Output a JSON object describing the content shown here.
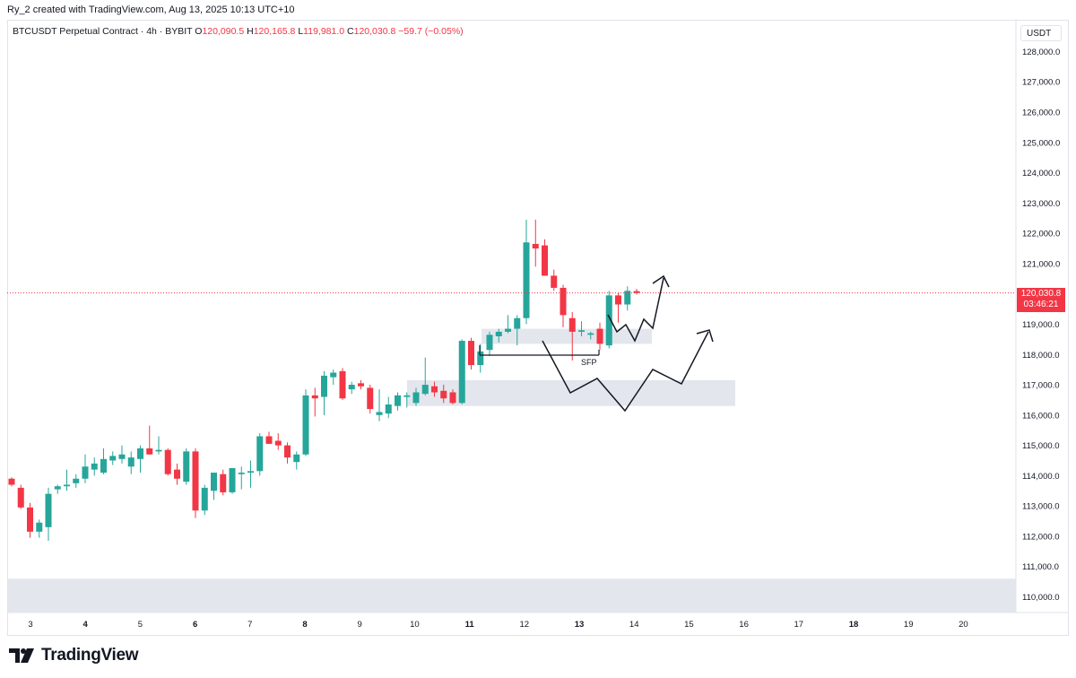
{
  "credit": "Ry_2 created with TradingView.com, Aug 13, 2025 10:13 UTC+10",
  "legend": {
    "symbol": "BTCUSDT Perpetual Contract · 4h · BYBIT",
    "open_label": "O",
    "open": "120,090.5",
    "high_label": "H",
    "high": "120,165.8",
    "low_label": "L",
    "low": "119,981.0",
    "close_label": "C",
    "close": "120,030.8",
    "change": "−59.7 (−0.05%)"
  },
  "currency": "USDT",
  "price_tag": {
    "price": "120,030.8",
    "countdown": "03:46:21"
  },
  "annotation_label": "SFP",
  "brand": "TradingView",
  "colors": {
    "up": "#26a69a",
    "down": "#f23645",
    "zone": "#e0e3eb",
    "grid_text": "#131722"
  },
  "chart_data": {
    "type": "candlestick",
    "timeframe": "4h",
    "ylim": [
      109500,
      128800
    ],
    "y_ticks": [
      110000,
      111000,
      112000,
      113000,
      114000,
      115000,
      116000,
      117000,
      118000,
      119000,
      120000,
      121000,
      122000,
      123000,
      124000,
      125000,
      126000,
      127000,
      128000
    ],
    "y_tick_labels": [
      "110,000.0",
      "111,000.0",
      "112,000.0",
      "113,000.0",
      "114,000.0",
      "115,000.0",
      "116,000.0",
      "117,000.0",
      "118,000.0",
      "119,000.0",
      "120,000.0",
      "121,000.0",
      "122,000.0",
      "123,000.0",
      "124,000.0",
      "125,000.0",
      "126,000.0",
      "127,000.0",
      "128,000.0"
    ],
    "x_ticks": [
      3,
      4,
      5,
      6,
      7,
      8,
      9,
      10,
      11,
      12,
      13,
      14,
      15,
      16,
      17,
      18,
      19,
      20
    ],
    "x_tick_labels": [
      "3",
      "4",
      "5",
      "6",
      "7",
      "8",
      "9",
      "10",
      "11",
      "12",
      "13",
      "14",
      "15",
      "16",
      "17",
      "18",
      "19",
      "20"
    ],
    "x_tick_bold": [
      4,
      6,
      8,
      11,
      13,
      18
    ],
    "last_price": 120030.8,
    "candles": [
      {
        "o": 113900,
        "h": 113950,
        "l": 113650,
        "c": 113700
      },
      {
        "o": 113600,
        "h": 113700,
        "l": 112900,
        "c": 112950
      },
      {
        "o": 112950,
        "h": 113100,
        "l": 111950,
        "c": 112150
      },
      {
        "o": 112150,
        "h": 112550,
        "l": 111950,
        "c": 112450
      },
      {
        "o": 112300,
        "h": 113600,
        "l": 111850,
        "c": 113400
      },
      {
        "o": 113550,
        "h": 113700,
        "l": 113400,
        "c": 113650
      },
      {
        "o": 113650,
        "h": 114200,
        "l": 113500,
        "c": 113700
      },
      {
        "o": 113750,
        "h": 114050,
        "l": 113600,
        "c": 113900
      },
      {
        "o": 113900,
        "h": 114700,
        "l": 113750,
        "c": 114300
      },
      {
        "o": 114200,
        "h": 114600,
        "l": 114000,
        "c": 114400
      },
      {
        "o": 114100,
        "h": 114900,
        "l": 114050,
        "c": 114550
      },
      {
        "o": 114500,
        "h": 114800,
        "l": 114350,
        "c": 114650
      },
      {
        "o": 114550,
        "h": 115000,
        "l": 114400,
        "c": 114700
      },
      {
        "o": 114300,
        "h": 114800,
        "l": 114050,
        "c": 114600
      },
      {
        "o": 114550,
        "h": 115000,
        "l": 114100,
        "c": 114900
      },
      {
        "o": 114900,
        "h": 115650,
        "l": 114700,
        "c": 114700
      },
      {
        "o": 114800,
        "h": 115300,
        "l": 114700,
        "c": 114850
      },
      {
        "o": 114850,
        "h": 114900,
        "l": 114000,
        "c": 114050
      },
      {
        "o": 114200,
        "h": 114400,
        "l": 113700,
        "c": 113900
      },
      {
        "o": 113800,
        "h": 114900,
        "l": 113700,
        "c": 114800
      },
      {
        "o": 114800,
        "h": 114900,
        "l": 112600,
        "c": 112850
      },
      {
        "o": 112850,
        "h": 113700,
        "l": 112700,
        "c": 113600
      },
      {
        "o": 113500,
        "h": 114100,
        "l": 113200,
        "c": 114100
      },
      {
        "o": 114050,
        "h": 114200,
        "l": 113350,
        "c": 113450
      },
      {
        "o": 113450,
        "h": 114250,
        "l": 113400,
        "c": 114250
      },
      {
        "o": 114050,
        "h": 114300,
        "l": 113550,
        "c": 114100
      },
      {
        "o": 114100,
        "h": 114500,
        "l": 113600,
        "c": 114150
      },
      {
        "o": 114150,
        "h": 115400,
        "l": 114000,
        "c": 115300
      },
      {
        "o": 115300,
        "h": 115450,
        "l": 115050,
        "c": 115050
      },
      {
        "o": 115150,
        "h": 115400,
        "l": 114850,
        "c": 115000
      },
      {
        "o": 115000,
        "h": 115100,
        "l": 114400,
        "c": 114600
      },
      {
        "o": 114450,
        "h": 114800,
        "l": 114200,
        "c": 114700
      },
      {
        "o": 114700,
        "h": 116850,
        "l": 114650,
        "c": 116650
      },
      {
        "o": 116650,
        "h": 116900,
        "l": 115950,
        "c": 116550
      },
      {
        "o": 116600,
        "h": 117450,
        "l": 116000,
        "c": 117300
      },
      {
        "o": 117250,
        "h": 117500,
        "l": 117000,
        "c": 117400
      },
      {
        "o": 117450,
        "h": 117550,
        "l": 116500,
        "c": 116550
      },
      {
        "o": 116850,
        "h": 117100,
        "l": 116700,
        "c": 117000
      },
      {
        "o": 117050,
        "h": 117150,
        "l": 116850,
        "c": 116950
      },
      {
        "o": 116900,
        "h": 117000,
        "l": 116050,
        "c": 116200
      },
      {
        "o": 116000,
        "h": 116850,
        "l": 115800,
        "c": 116100
      },
      {
        "o": 116050,
        "h": 116600,
        "l": 115900,
        "c": 116350
      },
      {
        "o": 116300,
        "h": 116750,
        "l": 116150,
        "c": 116650
      },
      {
        "o": 116600,
        "h": 116750,
        "l": 116250,
        "c": 116650
      },
      {
        "o": 116400,
        "h": 116900,
        "l": 116300,
        "c": 116750
      },
      {
        "o": 116700,
        "h": 117900,
        "l": 116650,
        "c": 117000
      },
      {
        "o": 116950,
        "h": 117100,
        "l": 116600,
        "c": 116750
      },
      {
        "o": 116800,
        "h": 117000,
        "l": 116400,
        "c": 116550
      },
      {
        "o": 116750,
        "h": 116850,
        "l": 116350,
        "c": 116400
      },
      {
        "o": 116400,
        "h": 118500,
        "l": 116350,
        "c": 118450
      },
      {
        "o": 118450,
        "h": 118550,
        "l": 117500,
        "c": 117650
      },
      {
        "o": 117650,
        "h": 118350,
        "l": 117400,
        "c": 118100
      },
      {
        "o": 118150,
        "h": 118750,
        "l": 117950,
        "c": 118650
      },
      {
        "o": 118600,
        "h": 118850,
        "l": 118400,
        "c": 118750
      },
      {
        "o": 118750,
        "h": 119300,
        "l": 118700,
        "c": 118850
      },
      {
        "o": 118850,
        "h": 119300,
        "l": 118300,
        "c": 119200
      },
      {
        "o": 119200,
        "h": 122450,
        "l": 119000,
        "c": 121700
      },
      {
        "o": 121650,
        "h": 122450,
        "l": 120900,
        "c": 121500
      },
      {
        "o": 121600,
        "h": 121800,
        "l": 120600,
        "c": 120600
      },
      {
        "o": 120600,
        "h": 120800,
        "l": 120100,
        "c": 120200
      },
      {
        "o": 120200,
        "h": 120300,
        "l": 118900,
        "c": 119300
      },
      {
        "o": 119200,
        "h": 119400,
        "l": 117800,
        "c": 118750
      },
      {
        "o": 118750,
        "h": 119100,
        "l": 118600,
        "c": 118800
      },
      {
        "o": 118650,
        "h": 118750,
        "l": 118500,
        "c": 118700
      },
      {
        "o": 118850,
        "h": 119050,
        "l": 118150,
        "c": 118350
      },
      {
        "o": 118300,
        "h": 120100,
        "l": 118200,
        "c": 119950
      },
      {
        "o": 119950,
        "h": 120050,
        "l": 119050,
        "c": 119650
      },
      {
        "o": 119650,
        "h": 120250,
        "l": 119450,
        "c": 120100
      },
      {
        "o": 120090.5,
        "h": 120165.8,
        "l": 119981.0,
        "c": 120030.8
      }
    ]
  }
}
